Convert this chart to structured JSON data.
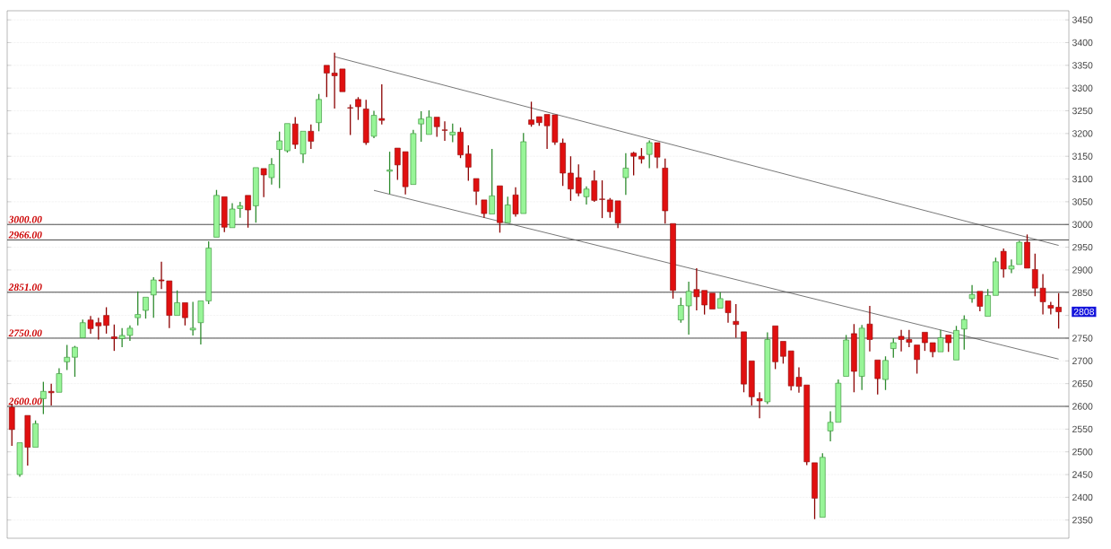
{
  "chart_data": {
    "type": "candlestick",
    "categories": [
      null,
      null,
      null,
      null,
      null,
      null,
      null,
      null,
      null,
      null,
      null,
      null,
      null,
      null,
      null,
      null,
      null,
      null,
      null,
      null,
      null,
      null,
      null,
      null,
      null,
      null,
      null,
      null,
      null,
      null,
      null,
      null,
      null,
      null,
      null,
      null,
      null,
      null,
      null,
      null,
      null,
      null,
      null,
      null,
      null,
      null,
      null,
      null,
      null,
      null,
      null,
      null,
      null,
      null,
      null,
      null,
      null,
      null,
      null,
      null,
      null,
      null,
      null,
      null,
      null,
      null,
      null,
      null,
      null,
      null,
      null,
      null,
      null,
      null,
      null,
      null,
      null,
      null,
      null,
      null,
      null,
      null,
      null,
      null,
      null,
      null,
      null,
      null,
      null,
      null,
      null,
      null,
      null,
      null,
      null,
      null,
      null,
      null,
      null,
      null,
      null,
      null,
      null,
      null,
      null,
      null,
      null,
      null,
      null,
      null,
      null,
      null,
      null,
      null,
      null,
      null,
      null,
      null,
      null,
      null,
      null,
      null,
      null,
      null,
      null,
      null,
      null,
      null,
      null,
      null,
      null,
      null,
      null,
      null
    ],
    "ohlc": [
      [
        2598,
        2605,
        2513,
        2549
      ],
      [
        2450,
        2520,
        2445,
        2520
      ],
      [
        2580,
        2580,
        2470,
        2510
      ],
      [
        2510,
        2569,
        2510,
        2562
      ],
      [
        2617,
        2654,
        2583,
        2633
      ],
      [
        2633,
        2650,
        2602,
        2630
      ],
      [
        2631,
        2684,
        2631,
        2672
      ],
      [
        2698,
        2735,
        2680,
        2708
      ],
      [
        2708,
        2733,
        2665,
        2730
      ],
      [
        2751,
        2791,
        2751,
        2784
      ],
      [
        2790,
        2799,
        2760,
        2771
      ],
      [
        2784,
        2795,
        2747,
        2777
      ],
      [
        2800,
        2818,
        2760,
        2778
      ],
      [
        2753,
        2780,
        2722,
        2749
      ],
      [
        2749,
        2772,
        2730,
        2756
      ],
      [
        2756,
        2778,
        2744,
        2772
      ],
      [
        2795,
        2853,
        2778,
        2802
      ],
      [
        2811,
        2840,
        2793,
        2840
      ],
      [
        2845,
        2884,
        2795,
        2878
      ],
      [
        2878,
        2918,
        2858,
        2876
      ],
      [
        2876,
        2876,
        2772,
        2800
      ],
      [
        2800,
        2855,
        2800,
        2828
      ],
      [
        2828,
        2828,
        2778,
        2795
      ],
      [
        2768,
        2830,
        2756,
        2772
      ],
      [
        2784,
        2832,
        2736,
        2832
      ],
      [
        2832,
        2963,
        2825,
        2948
      ],
      [
        2972,
        3076,
        2972,
        3064
      ],
      [
        3061,
        3061,
        2983,
        2994
      ],
      [
        2993,
        3047,
        2993,
        3034
      ],
      [
        3035,
        3050,
        3015,
        3041
      ],
      [
        3064,
        3064,
        2993,
        3032
      ],
      [
        3041,
        3125,
        3004,
        3125
      ],
      [
        3123,
        3123,
        3060,
        3109
      ],
      [
        3103,
        3146,
        3088,
        3132
      ],
      [
        3165,
        3204,
        3080,
        3184
      ],
      [
        3162,
        3222,
        3158,
        3222
      ],
      [
        3221,
        3236,
        3166,
        3176
      ],
      [
        3155,
        3205,
        3135,
        3205
      ],
      [
        3205,
        3220,
        3166,
        3183
      ],
      [
        3224,
        3287,
        3205,
        3275
      ],
      [
        3350,
        3350,
        3280,
        3333
      ],
      [
        3333,
        3378,
        3255,
        3327
      ],
      [
        3342,
        3342,
        3292,
        3292
      ],
      [
        3257,
        3264,
        3197,
        3256
      ],
      [
        3275,
        3280,
        3230,
        3259
      ],
      [
        3254,
        3274,
        3175,
        3180
      ],
      [
        3194,
        3250,
        3190,
        3240
      ],
      [
        3233,
        3308,
        3220,
        3229
      ],
      [
        3117,
        3160,
        3067,
        3120
      ],
      [
        3168,
        3168,
        3098,
        3131
      ],
      [
        3160,
        3160,
        3066,
        3083
      ],
      [
        3088,
        3208,
        3088,
        3200
      ],
      [
        3221,
        3249,
        3182,
        3232
      ],
      [
        3198,
        3251,
        3198,
        3236
      ],
      [
        3236,
        3236,
        3193,
        3215
      ],
      [
        3208,
        3227,
        3184,
        3207
      ],
      [
        3197,
        3222,
        3181,
        3203
      ],
      [
        3203,
        3213,
        3146,
        3153
      ],
      [
        3155,
        3174,
        3096,
        3126
      ],
      [
        3101,
        3101,
        3043,
        3073
      ],
      [
        3054,
        3054,
        3015,
        3024
      ],
      [
        3023,
        3166,
        3023,
        3063
      ],
      [
        3085,
        3085,
        2982,
        3004
      ],
      [
        3004,
        3061,
        3004,
        3043
      ],
      [
        3065,
        3082,
        3017,
        3023
      ],
      [
        3024,
        3201,
        3024,
        3182
      ],
      [
        3230,
        3270,
        3215,
        3220
      ],
      [
        3237,
        3237,
        3217,
        3224
      ],
      [
        3242,
        3242,
        3166,
        3217
      ],
      [
        3241,
        3241,
        3175,
        3181
      ],
      [
        3179,
        3189,
        3085,
        3113
      ],
      [
        3113,
        3150,
        3052,
        3078
      ],
      [
        3103,
        3132,
        3062,
        3069
      ],
      [
        3061,
        3084,
        3044,
        3078
      ],
      [
        3096,
        3119,
        3050,
        3053
      ],
      [
        3056,
        3097,
        3014,
        3055
      ],
      [
        3054,
        3058,
        3015,
        3028
      ],
      [
        3052,
        3052,
        2992,
        3003
      ],
      [
        3103,
        3157,
        3065,
        3124
      ],
      [
        3157,
        3160,
        3108,
        3150
      ],
      [
        3150,
        3168,
        3134,
        3144
      ],
      [
        3154,
        3185,
        3124,
        3180
      ],
      [
        3180,
        3180,
        3124,
        3148
      ],
      [
        3124,
        3145,
        3002,
        3030
      ],
      [
        3002,
        3002,
        2837,
        2855
      ],
      [
        2790,
        2839,
        2784,
        2822
      ],
      [
        2821,
        2874,
        2758,
        2853
      ],
      [
        2857,
        2904,
        2811,
        2841
      ],
      [
        2855,
        2855,
        2802,
        2823
      ],
      [
        2849,
        2849,
        2814,
        2814
      ],
      [
        2816,
        2851,
        2816,
        2837
      ],
      [
        2832,
        2832,
        2784,
        2806
      ],
      [
        2787,
        2825,
        2751,
        2780
      ],
      [
        2764,
        2764,
        2631,
        2649
      ],
      [
        2700,
        2700,
        2602,
        2621
      ],
      [
        2617,
        2631,
        2574,
        2612
      ],
      [
        2610,
        2763,
        2605,
        2747
      ],
      [
        2777,
        2777,
        2682,
        2698
      ],
      [
        2743,
        2743,
        2694,
        2710
      ],
      [
        2722,
        2722,
        2635,
        2645
      ],
      [
        2664,
        2686,
        2630,
        2644
      ],
      [
        2647,
        2647,
        2471,
        2478
      ],
      [
        2476,
        2476,
        2352,
        2398
      ],
      [
        2356,
        2497,
        2356,
        2488
      ],
      [
        2546,
        2589,
        2523,
        2565
      ],
      [
        2565,
        2659,
        2565,
        2651
      ],
      [
        2666,
        2757,
        2666,
        2746
      ],
      [
        2760,
        2781,
        2631,
        2677
      ],
      [
        2666,
        2779,
        2636,
        2772
      ],
      [
        2781,
        2821,
        2721,
        2747
      ],
      [
        2702,
        2702,
        2626,
        2661
      ],
      [
        2659,
        2710,
        2636,
        2701
      ],
      [
        2727,
        2750,
        2707,
        2740
      ],
      [
        2754,
        2768,
        2721,
        2747
      ],
      [
        2747,
        2768,
        2730,
        2741
      ],
      [
        2735,
        2735,
        2672,
        2703
      ],
      [
        2763,
        2763,
        2722,
        2740
      ],
      [
        2740,
        2740,
        2708,
        2720
      ],
      [
        2720,
        2768,
        2720,
        2751
      ],
      [
        2757,
        2757,
        2720,
        2740
      ],
      [
        2702,
        2777,
        2702,
        2767
      ],
      [
        2770,
        2800,
        2725,
        2791
      ],
      [
        2837,
        2867,
        2828,
        2846
      ],
      [
        2853,
        2853,
        2809,
        2820
      ],
      [
        2798,
        2858,
        2798,
        2844
      ],
      [
        2844,
        2927,
        2844,
        2918
      ],
      [
        2941,
        2947,
        2883,
        2902
      ],
      [
        2902,
        2923,
        2893,
        2909
      ],
      [
        2912,
        2964,
        2912,
        2961
      ],
      [
        2961,
        2978,
        2904,
        2904
      ],
      [
        2901,
        2936,
        2842,
        2860
      ],
      [
        2860,
        2891,
        2802,
        2830
      ],
      [
        2822,
        2830,
        2802,
        2816
      ],
      [
        2818,
        2849,
        2771,
        2808
      ]
    ],
    "series": [
      {
        "type": "line",
        "values": [
          null,
          null,
          null,
          null,
          null,
          null,
          null,
          null,
          null,
          null,
          null,
          null,
          null,
          null,
          null,
          null,
          null,
          null,
          null,
          null,
          null,
          null,
          null,
          null,
          null,
          null,
          null,
          null,
          null,
          null,
          null,
          null,
          null,
          null,
          null,
          null,
          null,
          null,
          null,
          null,
          null,
          3369,
          null,
          null,
          null,
          null,
          null,
          null,
          null,
          null,
          null,
          null,
          null,
          null,
          null,
          null,
          null,
          null,
          null,
          null,
          null,
          null,
          null,
          null,
          null,
          null,
          null,
          null,
          null,
          null,
          null,
          null,
          null,
          null,
          null,
          null,
          null,
          null,
          null,
          null,
          null,
          null,
          null,
          null,
          null,
          null,
          null,
          null,
          null,
          null,
          null,
          null,
          null,
          null,
          null,
          null,
          null,
          null,
          null,
          null,
          null,
          null,
          null,
          null,
          null,
          null,
          null,
          null,
          null,
          null,
          null,
          null,
          null,
          null,
          null,
          null,
          null,
          null,
          null,
          null,
          null,
          null,
          null,
          null,
          null,
          null,
          null,
          null,
          null,
          null,
          null,
          null,
          null,
          2954
        ],
        "color": "#555555"
      },
      {
        "type": "line",
        "values": [
          null,
          null,
          null,
          null,
          null,
          null,
          null,
          null,
          null,
          null,
          null,
          null,
          null,
          null,
          null,
          null,
          null,
          null,
          null,
          null,
          null,
          null,
          null,
          null,
          null,
          null,
          null,
          null,
          null,
          null,
          null,
          null,
          null,
          null,
          null,
          null,
          null,
          null,
          null,
          null,
          null,
          null,
          null,
          null,
          null,
          null,
          3075,
          null,
          null,
          null,
          null,
          null,
          null,
          null,
          null,
          null,
          null,
          null,
          null,
          null,
          null,
          null,
          null,
          null,
          null,
          null,
          null,
          null,
          null,
          null,
          null,
          null,
          null,
          null,
          null,
          null,
          null,
          null,
          null,
          null,
          null,
          null,
          null,
          null,
          null,
          null,
          null,
          null,
          null,
          null,
          null,
          null,
          null,
          null,
          null,
          null,
          null,
          null,
          null,
          null,
          null,
          null,
          null,
          null,
          null,
          null,
          null,
          null,
          null,
          null,
          null,
          null,
          null,
          null,
          null,
          null,
          null,
          null,
          null,
          null,
          null,
          null,
          null,
          null,
          null,
          null,
          null,
          null,
          null,
          null,
          null,
          null,
          null,
          2704
        ],
        "color": "#555555"
      }
    ],
    "ref_lines": [
      {
        "axis": "y",
        "value": 3000,
        "label": "3000.00",
        "color": "#4c4c4c"
      },
      {
        "axis": "y",
        "value": 2966,
        "label": "2966.00",
        "color": "#4c4c4c"
      },
      {
        "axis": "y",
        "value": 2851,
        "label": "2851.00",
        "color": "#4c4c4c"
      },
      {
        "axis": "y",
        "value": 2750,
        "label": "2750.00",
        "color": "#4c4c4c"
      },
      {
        "axis": "y",
        "value": 2600,
        "label": "2600.00",
        "color": "#4c4c4c"
      }
    ],
    "annotations": [
      "2808"
    ],
    "ylim": [
      2310,
      3470
    ],
    "yticks": [
      2350,
      2400,
      2450,
      2500,
      2550,
      2600,
      2650,
      2700,
      2750,
      {
        "value": 2800,
        "label": null
      },
      2850,
      2900,
      2950,
      3000,
      3050,
      3100,
      3150,
      3200,
      3250,
      3300,
      3350,
      3400,
      3450
    ],
    "tick_labels": "y",
    "grid": "y"
  }
}
